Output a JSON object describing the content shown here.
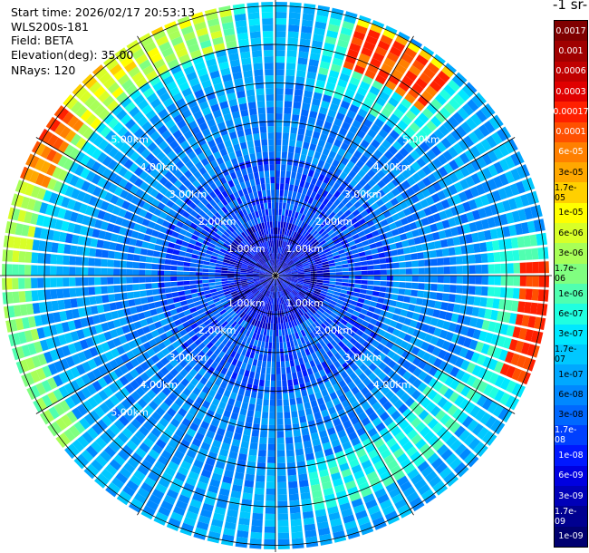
{
  "header": {
    "start_time": "Start time: 2026/02/17 20:53:13",
    "instrument": "WLS200s-181",
    "field": "Field: BETA",
    "elevation": "Elevation(deg): 35.00",
    "nrays": "NRays: 120"
  },
  "colorbar": {
    "unit_label": "-1 sr-",
    "ticks": [
      "0.0017",
      "0.001",
      "0.0006",
      "0.0003",
      "0.00017",
      "0.0001",
      "6e-05",
      "3e-05",
      "1.7e-05",
      "1e-05",
      "6e-06",
      "3e-06",
      "1.7e-06",
      "1e-06",
      "6e-07",
      "3e-07",
      "1.7e-07",
      "1e-07",
      "6e-08",
      "3e-08",
      "1.7e-08",
      "1e-08",
      "6e-09",
      "3e-09",
      "1.7e-09",
      "1e-09"
    ],
    "colors": [
      "#7f0000",
      "#a00000",
      "#c00000",
      "#e00000",
      "#ff2000",
      "#ff5000",
      "#ff8000",
      "#ffa800",
      "#ffd000",
      "#ffff00",
      "#d8ff28",
      "#a8ff58",
      "#80ff80",
      "#50ffb0",
      "#20ffe0",
      "#00e8ff",
      "#00c8ff",
      "#00a8ff",
      "#0088ff",
      "#0068ff",
      "#0040ff",
      "#0018ff",
      "#0000e0",
      "#0000b8",
      "#000090",
      "#000070"
    ]
  },
  "chart_data": {
    "type": "ppi",
    "field": "BETA",
    "elevation_deg": 35.0,
    "n_rays": 120,
    "range_rings": [
      {
        "label_km": "1.00km",
        "labels": [
          {
            "text": "1.00km"
          },
          {
            "text": "1.00km"
          },
          {
            "text": "1.00km"
          },
          {
            "text": "1.00km"
          }
        ]
      },
      {
        "label_km": "2.00km",
        "labels": [
          {
            "text": "2.00km"
          },
          {
            "text": "2.00km"
          },
          {
            "text": "2.00km"
          },
          {
            "text": "2.00km"
          }
        ]
      },
      {
        "label_km": "3.00km",
        "labels": [
          {
            "text": "3.00km"
          },
          {
            "text": "3.00km"
          },
          {
            "text": "3.00km"
          },
          {
            "text": "3.00km"
          }
        ]
      },
      {
        "label_km": "4.00km",
        "labels": [
          {
            "text": "4.00km"
          },
          {
            "text": "4.00km"
          },
          {
            "text": "4.00km"
          },
          {
            "text": "4.00km"
          }
        ]
      },
      {
        "label_km": "5.00km",
        "labels": [
          {
            "text": "5.00km"
          },
          {
            "text": "5.00km"
          },
          {
            "text": "5.00km"
          }
        ]
      }
    ]
  }
}
